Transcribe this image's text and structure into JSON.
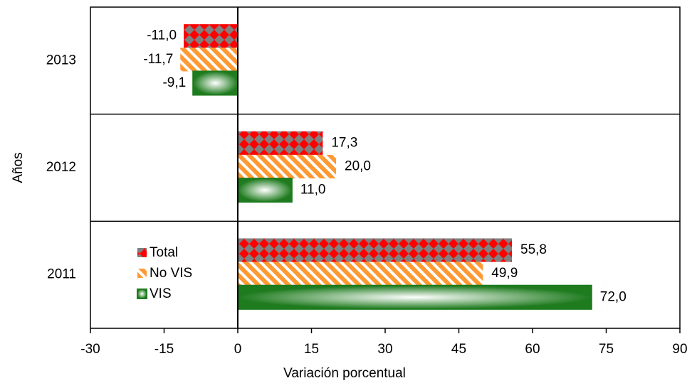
{
  "chart_data": {
    "type": "bar",
    "orientation": "horizontal",
    "x_label": "Variación porcentual",
    "y_label": "Años",
    "categories": [
      "2011",
      "2012",
      "2013"
    ],
    "series": [
      {
        "name": "Total",
        "color": "#ff0000",
        "values": [
          55.8,
          17.3,
          -11.0
        ],
        "value_labels": [
          "55,8",
          "17,3",
          "-11,0"
        ]
      },
      {
        "name": "No VIS",
        "color": "#ff9933",
        "values": [
          49.9,
          20.0,
          -11.7
        ],
        "value_labels": [
          "49,9",
          "20,0",
          "-11,7"
        ]
      },
      {
        "name": "VIS",
        "color": "#1e7b1e",
        "values": [
          72.0,
          11.0,
          -9.1
        ],
        "value_labels": [
          "72,0",
          "11,0",
          "-9,1"
        ]
      }
    ],
    "xlim": [
      -30,
      90
    ],
    "xticks": [
      -30,
      -15,
      0,
      15,
      30,
      45,
      60,
      75,
      90
    ],
    "legend": "lower left"
  }
}
